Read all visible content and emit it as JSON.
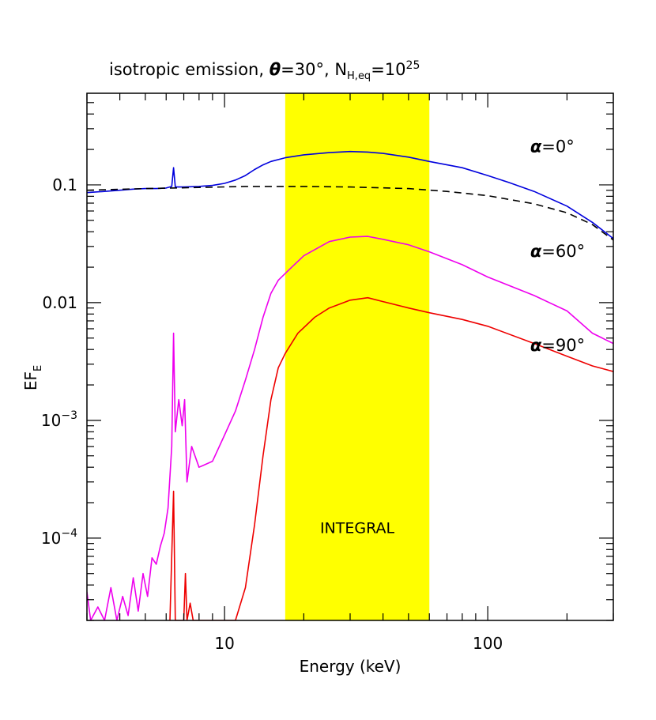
{
  "chart_data": {
    "type": "line",
    "title": {
      "prefix": "isotropic emission, ",
      "theta": "θ",
      "theta_value": "=30°, ",
      "nh": "N",
      "nh_sub": "H,eq",
      "nh_eq": "=10",
      "nh_sup": "25"
    },
    "xlabel": "Energy (keV)",
    "ylabel": "EF",
    "ylabel_sub": "E",
    "xscale": "log",
    "yscale": "log",
    "xlim": [
      3,
      300
    ],
    "ylim": [
      2e-05,
      0.6
    ],
    "x_ticks": [
      {
        "value": 10,
        "label": "10"
      },
      {
        "value": 100,
        "label": "100"
      }
    ],
    "y_ticks": [
      {
        "value": 0.1,
        "label": "0.1"
      },
      {
        "value": 0.01,
        "label": "0.01"
      },
      {
        "value": 0.001,
        "label": "10",
        "sup": "−3"
      },
      {
        "value": 0.0001,
        "label": "10",
        "sup": "−4"
      }
    ],
    "band": {
      "x0": 17,
      "x1": 60,
      "color": "#ffff00",
      "label": "INTEGRAL",
      "label_y": 0.00011
    },
    "series": [
      {
        "name": "α=0°",
        "label_alpha": "α",
        "label_rest": "=0°",
        "label_at": [
          145,
          0.19
        ],
        "color": "#0000dd",
        "style": "solid",
        "points": [
          [
            3,
            0.086
          ],
          [
            3.5,
            0.088
          ],
          [
            4,
            0.09
          ],
          [
            4.5,
            0.092
          ],
          [
            5,
            0.093
          ],
          [
            5.5,
            0.093
          ],
          [
            6,
            0.094
          ],
          [
            6.3,
            0.097
          ],
          [
            6.4,
            0.14
          ],
          [
            6.5,
            0.096
          ],
          [
            7,
            0.096
          ],
          [
            8,
            0.097
          ],
          [
            9,
            0.099
          ],
          [
            10,
            0.103
          ],
          [
            11,
            0.11
          ],
          [
            12,
            0.12
          ],
          [
            13,
            0.135
          ],
          [
            14,
            0.148
          ],
          [
            15,
            0.158
          ],
          [
            17,
            0.17
          ],
          [
            20,
            0.18
          ],
          [
            25,
            0.188
          ],
          [
            30,
            0.192
          ],
          [
            35,
            0.19
          ],
          [
            40,
            0.185
          ],
          [
            50,
            0.172
          ],
          [
            60,
            0.158
          ],
          [
            80,
            0.14
          ],
          [
            100,
            0.12
          ],
          [
            120,
            0.105
          ],
          [
            150,
            0.088
          ],
          [
            200,
            0.066
          ],
          [
            250,
            0.048
          ],
          [
            300,
            0.035
          ]
        ]
      },
      {
        "name": "dashed",
        "color": "#000000",
        "style": "dashed",
        "points": [
          [
            3,
            0.09
          ],
          [
            5,
            0.093
          ],
          [
            8,
            0.095
          ],
          [
            12,
            0.097
          ],
          [
            20,
            0.097
          ],
          [
            30,
            0.096
          ],
          [
            50,
            0.093
          ],
          [
            70,
            0.088
          ],
          [
            100,
            0.081
          ],
          [
            150,
            0.069
          ],
          [
            200,
            0.058
          ],
          [
            250,
            0.046
          ],
          [
            300,
            0.034
          ]
        ]
      },
      {
        "name": "α=60°",
        "label_alpha": "α",
        "label_rest": "=60°",
        "label_at": [
          145,
          0.0245
        ],
        "color": "#ee00ee",
        "style": "solid",
        "points": [
          [
            3,
            3.5e-05
          ],
          [
            3.1,
            2e-05
          ],
          [
            3.3,
            2.6e-05
          ],
          [
            3.5,
            2e-05
          ],
          [
            3.7,
            3.8e-05
          ],
          [
            3.9,
            2e-05
          ],
          [
            4.1,
            3.2e-05
          ],
          [
            4.3,
            2.2e-05
          ],
          [
            4.5,
            4.6e-05
          ],
          [
            4.7,
            2.4e-05
          ],
          [
            4.9,
            5e-05
          ],
          [
            5.1,
            3.2e-05
          ],
          [
            5.3,
            6.8e-05
          ],
          [
            5.5,
            6e-05
          ],
          [
            5.7,
            8.5e-05
          ],
          [
            5.9,
            0.00011
          ],
          [
            6.1,
            0.00018
          ],
          [
            6.3,
            0.0006
          ],
          [
            6.4,
            0.0055
          ],
          [
            6.5,
            0.0008
          ],
          [
            6.7,
            0.0015
          ],
          [
            6.9,
            0.0009
          ],
          [
            7.05,
            0.0015
          ],
          [
            7.2,
            0.0003
          ],
          [
            7.5,
            0.0006
          ],
          [
            8,
            0.0004
          ],
          [
            9,
            0.00045
          ],
          [
            10,
            0.00075
          ],
          [
            11,
            0.0012
          ],
          [
            12,
            0.0022
          ],
          [
            13,
            0.004
          ],
          [
            14,
            0.0075
          ],
          [
            15,
            0.012
          ],
          [
            16,
            0.0155
          ],
          [
            18,
            0.02
          ],
          [
            20,
            0.025
          ],
          [
            25,
            0.033
          ],
          [
            30,
            0.036
          ],
          [
            35,
            0.0365
          ],
          [
            40,
            0.0345
          ],
          [
            50,
            0.031
          ],
          [
            60,
            0.027
          ],
          [
            80,
            0.021
          ],
          [
            100,
            0.0165
          ],
          [
            150,
            0.0115
          ],
          [
            200,
            0.0085
          ],
          [
            250,
            0.0055
          ],
          [
            300,
            0.0045
          ]
        ]
      },
      {
        "name": "α=90°",
        "label_alpha": "α",
        "label_rest": "=90°",
        "label_at": [
          145,
          0.0039
        ],
        "color": "#ee0000",
        "style": "solid",
        "points": [
          [
            6.2,
            2e-05
          ],
          [
            6.4,
            0.00025
          ],
          [
            6.5,
            2e-05
          ],
          [
            7,
            2e-05
          ],
          [
            7.1,
            5e-05
          ],
          [
            7.2,
            2e-05
          ],
          [
            7.4,
            2.8e-05
          ],
          [
            7.6,
            2e-05
          ],
          [
            11,
            2e-05
          ],
          [
            12,
            3.8e-05
          ],
          [
            13,
            0.00013
          ],
          [
            14,
            0.0005
          ],
          [
            15,
            0.0015
          ],
          [
            16,
            0.0028
          ],
          [
            17,
            0.0037
          ],
          [
            19,
            0.0055
          ],
          [
            22,
            0.0075
          ],
          [
            25,
            0.009
          ],
          [
            30,
            0.0105
          ],
          [
            35,
            0.011
          ],
          [
            40,
            0.0102
          ],
          [
            50,
            0.009
          ],
          [
            60,
            0.0082
          ],
          [
            80,
            0.0072
          ],
          [
            100,
            0.0063
          ],
          [
            150,
            0.0045
          ],
          [
            200,
            0.0035
          ],
          [
            250,
            0.0029
          ],
          [
            300,
            0.0026
          ]
        ]
      }
    ],
    "grid": false,
    "legend": "none"
  }
}
